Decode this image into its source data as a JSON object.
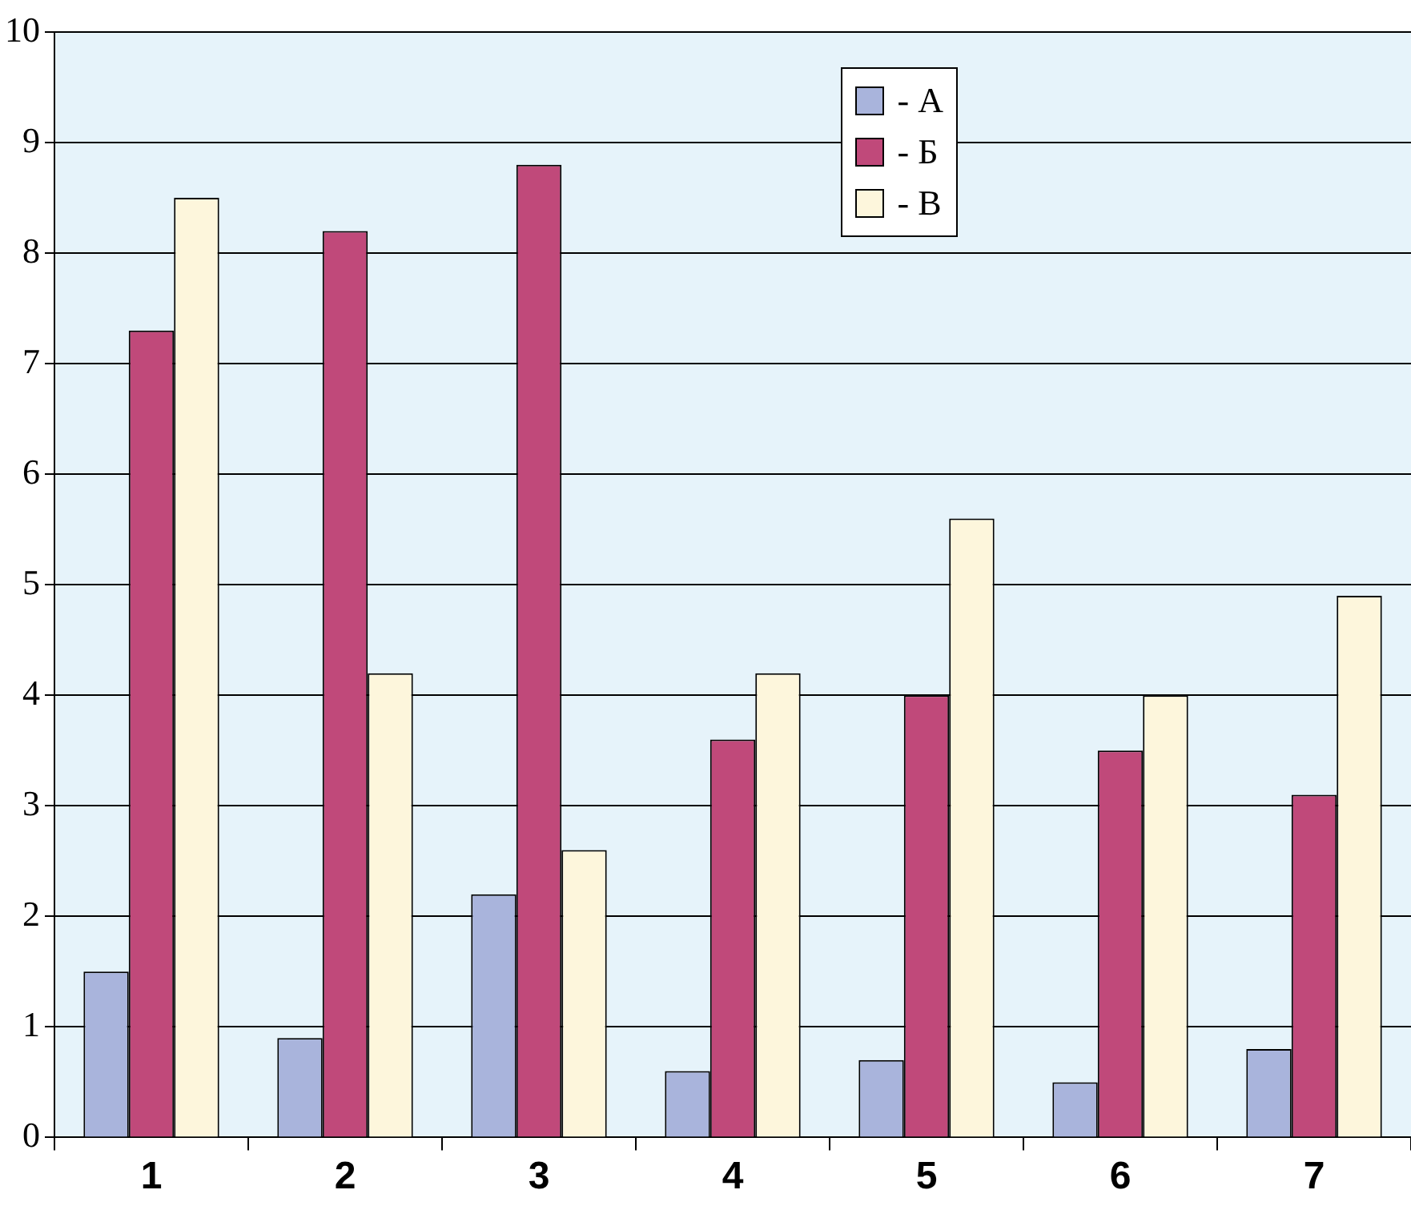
{
  "chart_data": {
    "type": "bar",
    "categories": [
      "1",
      "2",
      "3",
      "4",
      "5",
      "6",
      "7"
    ],
    "series": [
      {
        "name": "- А",
        "color": "#a9b4dc",
        "values": [
          1.5,
          0.9,
          2.2,
          0.6,
          0.7,
          0.5,
          0.8
        ]
      },
      {
        "name": "- Б",
        "color": "#c0497a",
        "values": [
          7.3,
          8.2,
          8.8,
          3.6,
          4.0,
          3.5,
          3.1
        ]
      },
      {
        "name": "- В",
        "color": "#fdf6dc",
        "values": [
          8.5,
          4.2,
          2.6,
          4.2,
          5.6,
          4.0,
          4.9
        ]
      }
    ],
    "ylim": [
      0,
      10
    ],
    "yticks": [
      0,
      1,
      2,
      3,
      4,
      5,
      6,
      7,
      8,
      9,
      10
    ],
    "grid": "y",
    "legend": "top"
  }
}
